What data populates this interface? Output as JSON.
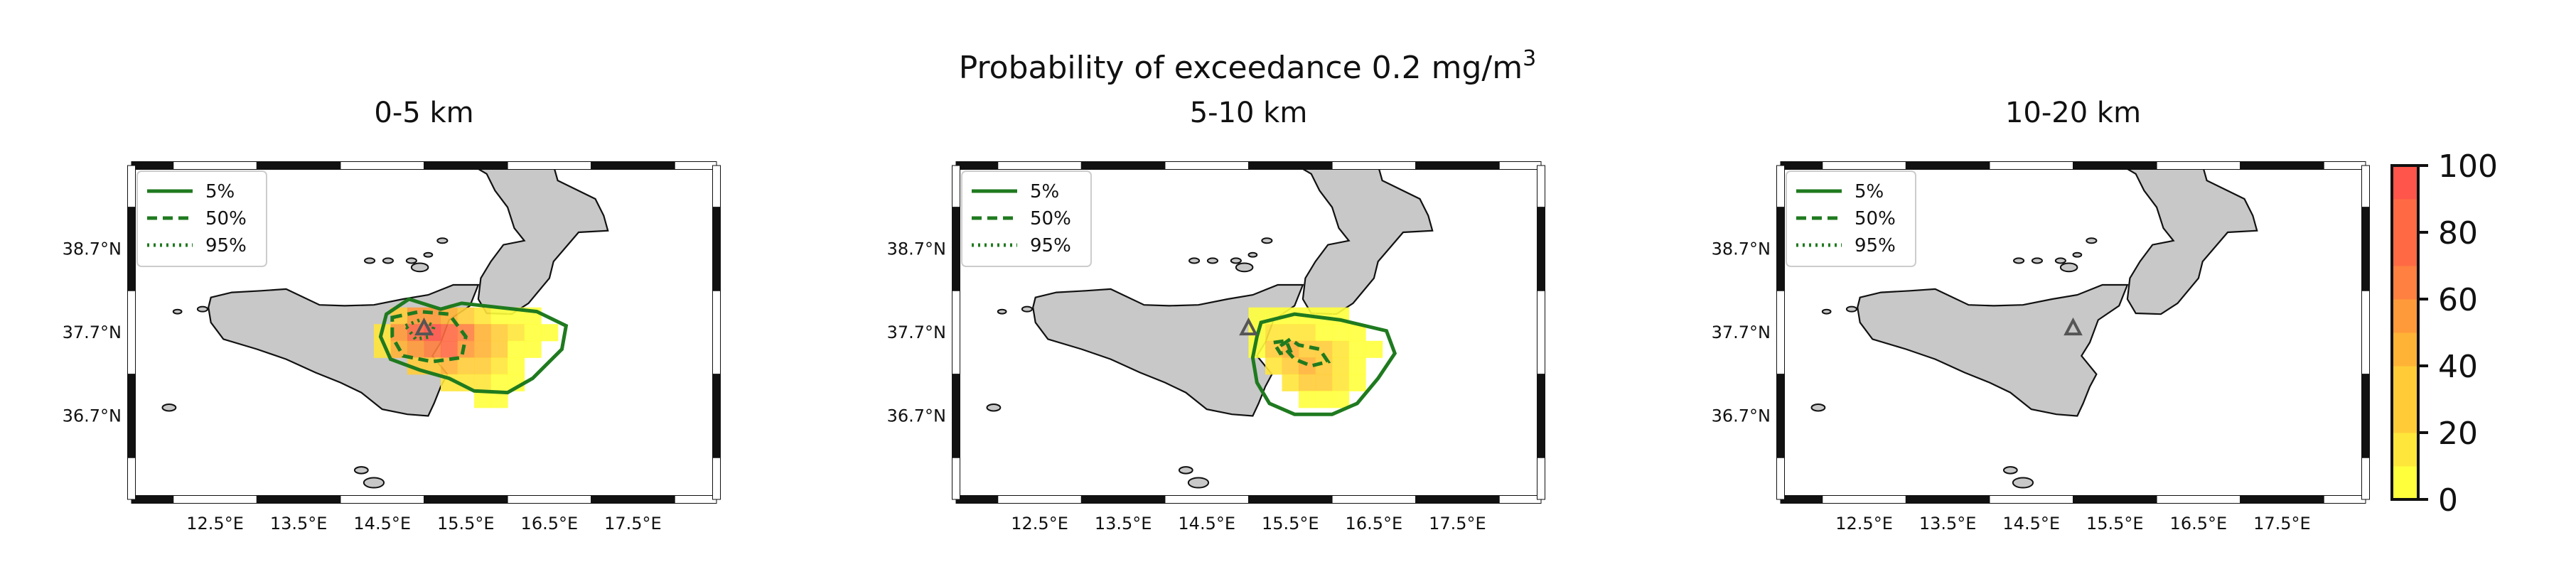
{
  "figure": {
    "suptitle_main": "Probability of exceedance 0.2 mg/m",
    "suptitle_sup": "3"
  },
  "colors": {
    "land": "#c8c8c8",
    "coast": "#111111",
    "contour": "#1f7a1f",
    "vent": "#555555",
    "colormap": [
      "#ffff3c",
      "#ffe63a",
      "#ffcc38",
      "#ffb336",
      "#ff9a3a",
      "#ff8040",
      "#ff6a45",
      "#ff554a"
    ]
  },
  "legend": {
    "items": [
      {
        "label": "5%",
        "style": "solid"
      },
      {
        "label": "50%",
        "style": "dashed"
      },
      {
        "label": "95%",
        "style": "dotted"
      }
    ]
  },
  "axes": {
    "lon_ticks": [
      12.5,
      13.5,
      14.5,
      15.5,
      16.5,
      17.5
    ],
    "lon_labels": [
      "12.5°E",
      "13.5°E",
      "14.5°E",
      "15.5°E",
      "16.5°E",
      "17.5°E"
    ],
    "lat_ticks": [
      38.7,
      37.7,
      36.7
    ],
    "lat_labels": [
      "38.7°N",
      "37.7°N",
      "36.7°N"
    ],
    "xlim": [
      11.5,
      18.5
    ],
    "ylim": [
      35.7,
      39.7
    ]
  },
  "colorbar": {
    "ticks": [
      0,
      20,
      40,
      60,
      80,
      100
    ],
    "tick_labels": [
      "0",
      "20",
      "40",
      "60",
      "80",
      "100"
    ],
    "range": [
      0,
      100
    ]
  },
  "chart_data": [
    {
      "type": "heatmap",
      "title": "0-5 km",
      "vent": {
        "lon": 15.0,
        "lat": 37.75
      },
      "cell_size_deg": 0.2,
      "cells": [
        [
          14.7,
          37.9,
          35
        ],
        [
          14.9,
          37.9,
          55
        ],
        [
          15.1,
          37.9,
          60
        ],
        [
          15.3,
          37.9,
          40
        ],
        [
          15.5,
          37.9,
          30
        ],
        [
          15.7,
          37.9,
          15
        ],
        [
          15.9,
          37.9,
          10
        ],
        [
          16.1,
          37.9,
          8
        ],
        [
          16.3,
          37.9,
          5
        ],
        [
          14.5,
          37.7,
          20
        ],
        [
          14.7,
          37.7,
          55
        ],
        [
          14.9,
          37.7,
          85
        ],
        [
          15.1,
          37.7,
          95
        ],
        [
          15.3,
          37.7,
          85
        ],
        [
          15.5,
          37.7,
          65
        ],
        [
          15.7,
          37.7,
          40
        ],
        [
          15.9,
          37.7,
          25
        ],
        [
          16.1,
          37.7,
          15
        ],
        [
          16.3,
          37.7,
          8
        ],
        [
          16.5,
          37.7,
          4
        ],
        [
          14.5,
          37.5,
          15
        ],
        [
          14.7,
          37.5,
          40
        ],
        [
          14.9,
          37.5,
          60
        ],
        [
          15.1,
          37.5,
          70
        ],
        [
          15.3,
          37.5,
          75
        ],
        [
          15.5,
          37.5,
          60
        ],
        [
          15.7,
          37.5,
          40
        ],
        [
          15.9,
          37.5,
          25
        ],
        [
          16.1,
          37.5,
          12
        ],
        [
          16.3,
          37.5,
          5
        ],
        [
          14.9,
          37.3,
          25
        ],
        [
          15.1,
          37.3,
          35
        ],
        [
          15.3,
          37.3,
          40
        ],
        [
          15.5,
          37.3,
          35
        ],
        [
          15.7,
          37.3,
          25
        ],
        [
          15.9,
          37.3,
          15
        ],
        [
          16.1,
          37.3,
          8
        ],
        [
          15.3,
          37.1,
          20
        ],
        [
          15.5,
          37.1,
          20
        ],
        [
          15.7,
          37.1,
          15
        ],
        [
          15.9,
          37.1,
          10
        ],
        [
          16.1,
          37.1,
          5
        ],
        [
          15.7,
          36.9,
          8
        ],
        [
          15.9,
          36.9,
          5
        ]
      ]
    },
    {
      "type": "heatmap",
      "title": "5-10 km",
      "vent": {
        "lon": 15.0,
        "lat": 37.75
      },
      "cell_size_deg": 0.2,
      "cells": [
        [
          15.1,
          37.9,
          5
        ],
        [
          15.3,
          37.9,
          8
        ],
        [
          15.5,
          37.9,
          10
        ],
        [
          15.7,
          37.9,
          8
        ],
        [
          15.9,
          37.9,
          5
        ],
        [
          16.1,
          37.9,
          4
        ],
        [
          15.1,
          37.7,
          8
        ],
        [
          15.3,
          37.7,
          15
        ],
        [
          15.5,
          37.7,
          20
        ],
        [
          15.7,
          37.7,
          18
        ],
        [
          15.9,
          37.7,
          12
        ],
        [
          16.1,
          37.7,
          8
        ],
        [
          16.3,
          37.7,
          5
        ],
        [
          15.1,
          37.5,
          10
        ],
        [
          15.3,
          37.5,
          25
        ],
        [
          15.5,
          37.5,
          40
        ],
        [
          15.7,
          37.5,
          35
        ],
        [
          15.9,
          37.5,
          25
        ],
        [
          16.1,
          37.5,
          15
        ],
        [
          16.3,
          37.5,
          8
        ],
        [
          16.5,
          37.5,
          4
        ],
        [
          15.3,
          37.3,
          20
        ],
        [
          15.5,
          37.3,
          35
        ],
        [
          15.7,
          37.3,
          45
        ],
        [
          15.9,
          37.3,
          35
        ],
        [
          16.1,
          37.3,
          20
        ],
        [
          16.3,
          37.3,
          10
        ],
        [
          15.5,
          37.1,
          20
        ],
        [
          15.7,
          37.1,
          30
        ],
        [
          15.9,
          37.1,
          25
        ],
        [
          16.1,
          37.1,
          15
        ],
        [
          16.3,
          37.1,
          8
        ],
        [
          15.7,
          36.9,
          12
        ],
        [
          15.9,
          36.9,
          10
        ],
        [
          16.1,
          36.9,
          6
        ]
      ]
    },
    {
      "type": "heatmap",
      "title": "10-20 km",
      "vent": {
        "lon": 15.0,
        "lat": 37.75
      },
      "cell_size_deg": 0.2,
      "cells": []
    }
  ]
}
